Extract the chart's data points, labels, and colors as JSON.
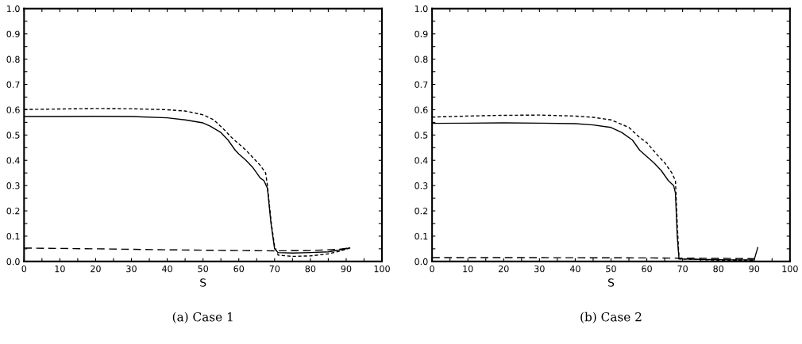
{
  "chart_data": [
    {
      "type": "line",
      "title": "(a) Case 1",
      "xlabel": "S",
      "xlim": [
        0,
        100
      ],
      "ylim": [
        0,
        1.0
      ],
      "xticks": [
        0,
        {
          "value": 5,
          "label": null
        },
        10,
        {
          "value": 15,
          "label": null
        },
        20,
        {
          "value": 25,
          "label": null
        },
        30,
        {
          "value": 35,
          "label": null
        },
        40,
        {
          "value": 45,
          "label": null
        },
        50,
        {
          "value": 55,
          "label": null
        },
        60,
        {
          "value": 65,
          "label": null
        },
        70,
        {
          "value": 75,
          "label": null
        },
        80,
        {
          "value": 85,
          "label": null
        },
        90,
        {
          "value": 95,
          "label": null
        },
        100
      ],
      "yticks": [
        {
          "value": 0,
          "label": "0.0"
        },
        {
          "value": 0.05,
          "label": null
        },
        0.1,
        {
          "value": 0.15,
          "label": null
        },
        0.2,
        {
          "value": 0.25,
          "label": null
        },
        0.3,
        {
          "value": 0.35,
          "label": null
        },
        0.4,
        {
          "value": 0.45,
          "label": null
        },
        0.5,
        {
          "value": 0.55,
          "label": null
        },
        0.6,
        {
          "value": 0.65,
          "label": null
        },
        0.7,
        {
          "value": 0.75,
          "label": null
        },
        0.8,
        {
          "value": 0.85,
          "label": null
        },
        0.9,
        {
          "value": 0.95,
          "label": null
        },
        {
          "value": 1.0,
          "label": "1.0"
        }
      ],
      "grid": false,
      "legend": false,
      "series": [
        {
          "color": "#000000",
          "line_style": "solid",
          "x": [
            0,
            10,
            20,
            30,
            40,
            45,
            50,
            52,
            55,
            57,
            59,
            60,
            62,
            64,
            66,
            67,
            68,
            69,
            70,
            71,
            75,
            80,
            85,
            88,
            91
          ],
          "values": [
            0.573,
            0.573,
            0.574,
            0.573,
            0.568,
            0.56,
            0.548,
            0.535,
            0.51,
            0.48,
            0.44,
            0.425,
            0.4,
            0.37,
            0.33,
            0.32,
            0.29,
            0.15,
            0.05,
            0.035,
            0.033,
            0.035,
            0.038,
            0.045,
            0.053
          ]
        },
        {
          "color": "#000000",
          "line_style": "dashed",
          "x": [
            0,
            10,
            20,
            30,
            40,
            45,
            50,
            53,
            56,
            58,
            60,
            62,
            64,
            66,
            67.5,
            68,
            69,
            70,
            71,
            75,
            80,
            85,
            88,
            91
          ],
          "values": [
            0.601,
            0.603,
            0.605,
            0.604,
            0.6,
            0.595,
            0.58,
            0.56,
            0.52,
            0.49,
            0.465,
            0.44,
            0.41,
            0.38,
            0.35,
            0.3,
            0.16,
            0.06,
            0.025,
            0.02,
            0.022,
            0.03,
            0.04,
            0.053
          ]
        },
        {
          "color": "#000000",
          "line_style": "longdash",
          "x": [
            0,
            20,
            40,
            60,
            70,
            80,
            88,
            91
          ],
          "values": [
            0.053,
            0.05,
            0.046,
            0.043,
            0.042,
            0.043,
            0.048,
            0.054
          ]
        }
      ]
    },
    {
      "type": "line",
      "title": "(b) Case 2",
      "xlabel": "S",
      "xlim": [
        0,
        100
      ],
      "ylim": [
        0,
        1.0
      ],
      "xticks": [
        0,
        {
          "value": 5,
          "label": null
        },
        10,
        {
          "value": 15,
          "label": null
        },
        20,
        {
          "value": 25,
          "label": null
        },
        30,
        {
          "value": 35,
          "label": null
        },
        40,
        {
          "value": 45,
          "label": null
        },
        50,
        {
          "value": 55,
          "label": null
        },
        60,
        {
          "value": 65,
          "label": null
        },
        70,
        {
          "value": 75,
          "label": null
        },
        80,
        {
          "value": 85,
          "label": null
        },
        90,
        {
          "value": 95,
          "label": null
        },
        100
      ],
      "yticks": [
        {
          "value": 0,
          "label": "0.0"
        },
        {
          "value": 0.05,
          "label": null
        },
        0.1,
        {
          "value": 0.15,
          "label": null
        },
        0.2,
        {
          "value": 0.25,
          "label": null
        },
        0.3,
        {
          "value": 0.35,
          "label": null
        },
        0.4,
        {
          "value": 0.45,
          "label": null
        },
        0.5,
        {
          "value": 0.55,
          "label": null
        },
        0.6,
        {
          "value": 0.65,
          "label": null
        },
        0.7,
        {
          "value": 0.75,
          "label": null
        },
        0.8,
        {
          "value": 0.85,
          "label": null
        },
        0.9,
        {
          "value": 0.95,
          "label": null
        },
        {
          "value": 1.0,
          "label": "1.0"
        }
      ],
      "grid": false,
      "legend": false,
      "series": [
        {
          "color": "#000000",
          "line_style": "solid",
          "x": [
            0,
            10,
            20,
            30,
            40,
            45,
            50,
            53,
            56,
            58,
            60,
            62,
            64,
            66,
            67.5,
            68,
            68.5,
            69,
            75,
            80,
            85,
            90,
            91
          ],
          "values": [
            0.546,
            0.547,
            0.548,
            0.547,
            0.545,
            0.54,
            0.53,
            0.51,
            0.48,
            0.44,
            0.415,
            0.39,
            0.36,
            0.32,
            0.3,
            0.27,
            0.1,
            0.01,
            0.008,
            0.007,
            0.006,
            0.006,
            0.055
          ]
        },
        {
          "color": "#000000",
          "line_style": "dashed",
          "x": [
            0,
            10,
            20,
            30,
            40,
            45,
            50,
            55,
            58,
            60,
            63,
            65,
            67,
            68,
            68.5,
            69,
            80,
            90
          ],
          "values": [
            0.571,
            0.575,
            0.578,
            0.579,
            0.575,
            0.57,
            0.56,
            0.53,
            0.49,
            0.47,
            0.42,
            0.39,
            0.35,
            0.32,
            0.15,
            0.01,
            0.005,
            0.005
          ]
        },
        {
          "color": "#000000",
          "line_style": "longdash",
          "x": [
            0,
            30,
            60,
            69,
            80,
            90
          ],
          "values": [
            0.015,
            0.015,
            0.014,
            0.013,
            0.012,
            0.011
          ]
        }
      ]
    }
  ]
}
